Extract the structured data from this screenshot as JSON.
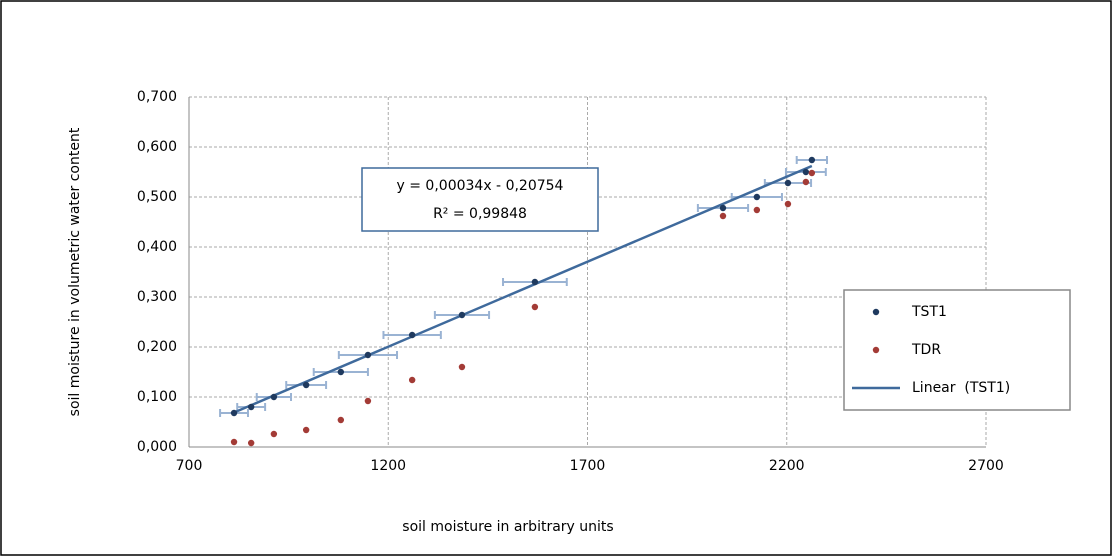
{
  "chart_data": {
    "type": "scatter",
    "xlabel": "soil moisture in arbitrary units",
    "ylabel": "soil moisture in volumetric water content",
    "xlim": [
      700,
      2700
    ],
    "xticks": [
      700,
      1200,
      1700,
      2200,
      2700
    ],
    "ylim": [
      0,
      0.7
    ],
    "yticks": [
      {
        "value": 0,
        "label": "0,000"
      },
      {
        "value": 0.1,
        "label": "0,100"
      },
      {
        "value": 0.2,
        "label": "0,200"
      },
      {
        "value": 0.3,
        "label": "0,300"
      },
      {
        "value": 0.4,
        "label": "0,400"
      },
      {
        "value": 0.5,
        "label": "0,500"
      },
      {
        "value": 0.6,
        "label": "0,600"
      },
      {
        "value": 0.7,
        "label": "0,700"
      }
    ],
    "grid": true,
    "legend": "right",
    "annotations": [
      "y = 0,00034x - 0,20754",
      "R² = 0,99848"
    ],
    "series": [
      {
        "name": "TST1",
        "color": "#1f3a5f",
        "errorbar_color": "#9ab3d3",
        "x": [
          813,
          856,
          913,
          994,
          1081,
          1149,
          1260,
          1385,
          1568,
          2040,
          2125,
          2203,
          2248,
          2263
        ],
        "values": [
          0.068,
          0.08,
          0.1,
          0.124,
          0.15,
          0.184,
          0.224,
          0.264,
          0.33,
          0.478,
          0.5,
          0.528,
          0.55,
          0.574
        ],
        "xerr": [
          35,
          35,
          43,
          50,
          68,
          73,
          72,
          68,
          80,
          63,
          63,
          58,
          50,
          38
        ]
      },
      {
        "name": "TDR",
        "color": "#a33b36",
        "x": [
          813,
          856,
          913,
          994,
          1081,
          1149,
          1260,
          1385,
          1568,
          2040,
          2125,
          2203,
          2248,
          2263
        ],
        "values": [
          0.01,
          0.008,
          0.026,
          0.034,
          0.054,
          0.092,
          0.134,
          0.16,
          0.28,
          0.462,
          0.474,
          0.486,
          0.53,
          0.548
        ]
      },
      {
        "name": "Linear  (TST1)",
        "type": "line",
        "color": "#3f6a9c",
        "x": [
          813,
          2263
        ],
        "values": [
          0.069,
          0.562
        ]
      }
    ]
  }
}
